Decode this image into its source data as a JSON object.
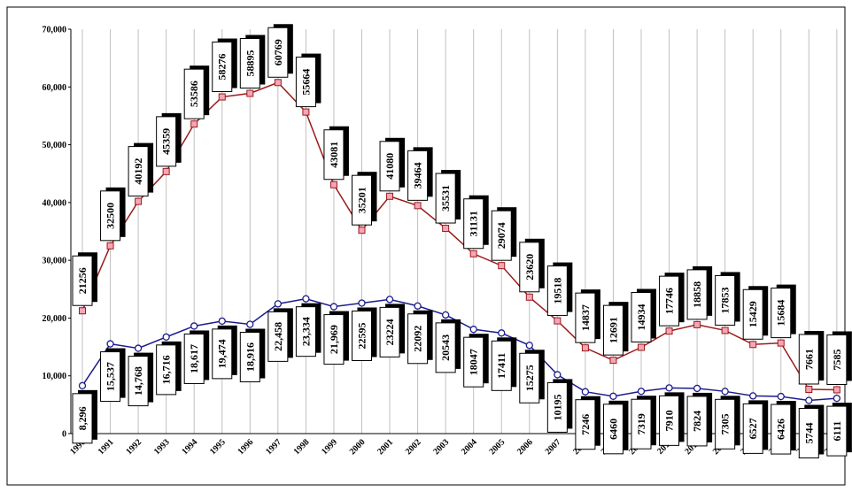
{
  "chart_data": {
    "type": "line",
    "categories": [
      "1990",
      "1991",
      "1992",
      "1993",
      "1994",
      "1995",
      "1996",
      "1997",
      "1998",
      "1999",
      "2000",
      "2001",
      "2002",
      "2003",
      "2004",
      "2005",
      "2006",
      "2007",
      "2008",
      "2009",
      "2010",
      "2011",
      "2012",
      "2013",
      "2014",
      "2015",
      "2016",
      "2017"
    ],
    "series": [
      {
        "color": "#9b1b1b",
        "marker": "square",
        "values": [
          21256,
          32500,
          40192,
          45359,
          53586,
          58276,
          58895,
          60769,
          55664,
          43081,
          35201,
          41080,
          39464,
          35531,
          31131,
          29074,
          23620,
          19518,
          14837,
          12691,
          14934,
          17746,
          18858,
          17853,
          15429,
          15684,
          7661,
          7585
        ]
      },
      {
        "color": "#1c1c8f",
        "marker": "circle",
        "values": [
          8296,
          15537,
          14768,
          16716,
          18617,
          19474,
          18916,
          22458,
          23334,
          21969,
          22595,
          23224,
          22092,
          20543,
          18047,
          17411,
          15275,
          10195,
          7246,
          6460,
          7319,
          7910,
          7824,
          7305,
          6527,
          6426,
          5744,
          6111
        ],
        "value_labels": [
          "8,296",
          "15,537",
          "14,768",
          "16,716",
          "18,617",
          "19,474",
          "18,916",
          "22,458",
          "23,334",
          "21,969",
          "22595",
          "23224",
          "22092",
          "20543",
          "18047",
          "17411",
          "15275",
          "10195",
          "7246",
          "6460",
          "7319",
          "7910",
          "7824",
          "7305",
          "6527",
          "6426",
          "5744",
          "6111"
        ]
      }
    ],
    "ylim": [
      0,
      70000
    ],
    "yticks": [
      0,
      {
        "value": 10000,
        "label": "10,000"
      },
      {
        "value": 20000,
        "label": "20,000"
      },
      {
        "value": 30000,
        "label": "30,000"
      },
      {
        "value": 40000,
        "label": "40,000"
      },
      {
        "value": 50000,
        "label": "50,000"
      },
      {
        "value": 60000,
        "label": "60,000"
      },
      {
        "value": 70000,
        "label": "70,000"
      }
    ],
    "grid": true
  }
}
